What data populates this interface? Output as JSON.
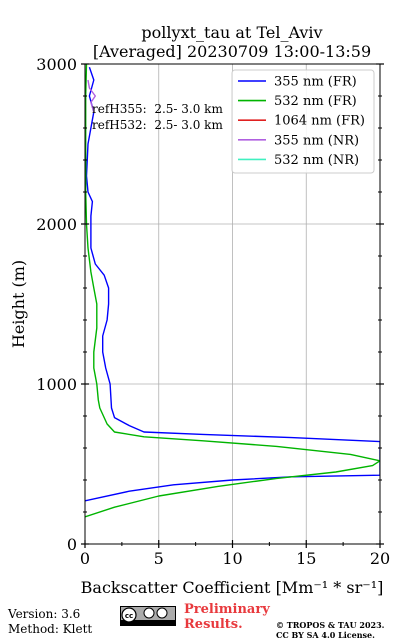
{
  "chart_data": {
    "type": "line",
    "title": "pollyxt_tau at Tel_Aviv",
    "subtitle": "[Averaged] 20230709 13:00-13:59",
    "xlabel": "Backscatter Coefficient [Mm⁻¹ * sr⁻¹]",
    "ylabel": "Height (m)",
    "xlim": [
      0,
      20
    ],
    "ylim": [
      0,
      3000
    ],
    "xticks": [
      0,
      5,
      10,
      15,
      20
    ],
    "yticks": [
      0,
      1000,
      2000,
      3000
    ],
    "grid": true,
    "legend_position": "top-right",
    "annotations": [
      "refH355:  2.5- 3.0 km",
      "refH532:  2.5- 3.0 km"
    ],
    "series": [
      {
        "name": "355 nm (FR)",
        "color": "#0000ff",
        "points": [
          [
            0.0,
            270
          ],
          [
            3.0,
            330
          ],
          [
            6.0,
            370
          ],
          [
            10.0,
            400
          ],
          [
            14.0,
            420
          ],
          [
            20.0,
            430
          ],
          [
            20.0,
            640
          ],
          [
            14.0,
            665
          ],
          [
            8.0,
            685
          ],
          [
            4.0,
            700
          ],
          [
            3.0,
            740
          ],
          [
            2.0,
            790
          ],
          [
            1.8,
            850
          ],
          [
            1.7,
            1000
          ],
          [
            1.4,
            1100
          ],
          [
            1.2,
            1200
          ],
          [
            1.2,
            1300
          ],
          [
            1.5,
            1400
          ],
          [
            1.6,
            1500
          ],
          [
            1.6,
            1600
          ],
          [
            1.3,
            1680
          ],
          [
            0.7,
            1750
          ],
          [
            0.4,
            1850
          ],
          [
            0.4,
            1950
          ],
          [
            0.4,
            2050
          ],
          [
            0.5,
            2140
          ],
          [
            0.2,
            2200
          ],
          [
            0.1,
            2300
          ],
          [
            0.2,
            2500
          ],
          [
            0.4,
            2600
          ],
          [
            0.6,
            2700
          ],
          [
            0.3,
            2800
          ],
          [
            0.6,
            2900
          ],
          [
            0.3,
            2980
          ]
        ]
      },
      {
        "name": "532 nm (FR)",
        "color": "#00b400",
        "points": [
          [
            0.0,
            170
          ],
          [
            2.0,
            230
          ],
          [
            5.0,
            300
          ],
          [
            9.0,
            360
          ],
          [
            13.0,
            410
          ],
          [
            17.0,
            450
          ],
          [
            19.5,
            490
          ],
          [
            20.0,
            520
          ],
          [
            18.0,
            560
          ],
          [
            13.0,
            610
          ],
          [
            8.0,
            645
          ],
          [
            4.0,
            670
          ],
          [
            2.0,
            700
          ],
          [
            1.5,
            750
          ],
          [
            1.0,
            850
          ],
          [
            0.9,
            900
          ],
          [
            0.8,
            1000
          ],
          [
            0.6,
            1100
          ],
          [
            0.6,
            1200
          ],
          [
            0.8,
            1350
          ],
          [
            0.8,
            1500
          ],
          [
            0.6,
            1600
          ],
          [
            0.4,
            1700
          ],
          [
            0.2,
            1850
          ],
          [
            0.1,
            2000
          ],
          [
            0.05,
            2200
          ],
          [
            0.05,
            2500
          ],
          [
            0.05,
            2800
          ],
          [
            0.1,
            3000
          ]
        ]
      },
      {
        "name": "1064 nm (FR)",
        "color": "#e02020",
        "points": []
      },
      {
        "name": "355 nm (NR)",
        "color": "#b060e0",
        "points": [
          [
            0.6,
            2700
          ],
          [
            0.4,
            2760
          ],
          [
            0.7,
            2800
          ],
          [
            0.3,
            2850
          ],
          [
            0.2,
            2900
          ]
        ]
      },
      {
        "name": "532 nm (NR)",
        "color": "#40f0c0",
        "points": []
      }
    ]
  },
  "footer": {
    "version": "Version: 3.6",
    "method": "Method: Klett",
    "preliminary_line1": "Preliminary",
    "preliminary_line2": "Results.",
    "copyright_line1": "© TROPOS & TAU 2023.",
    "copyright_line2": "CC BY SA 4.0 License."
  }
}
